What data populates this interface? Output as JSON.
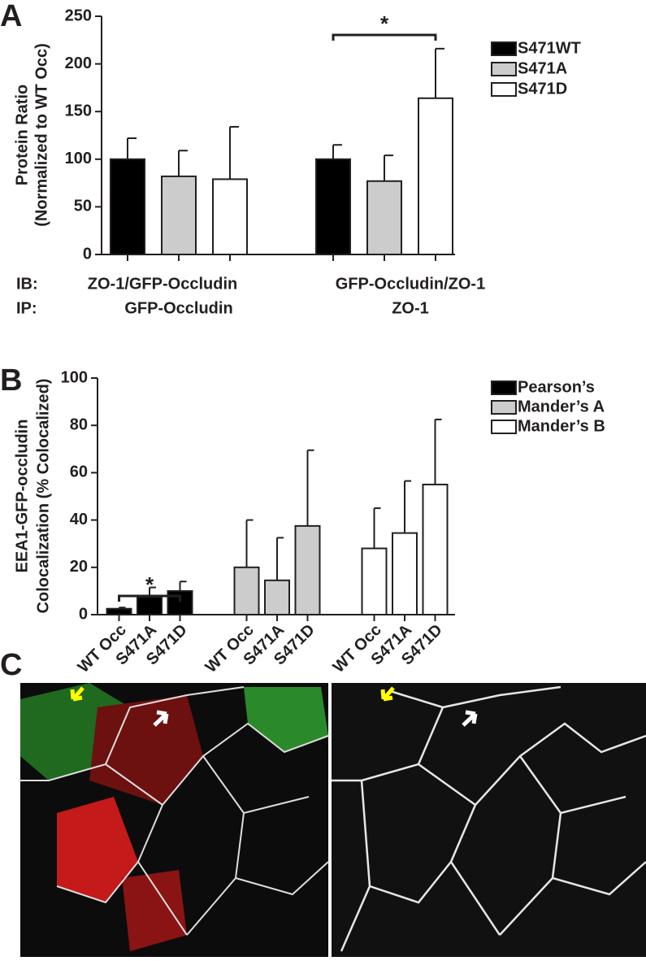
{
  "chart_data": [
    {
      "type": "bar",
      "panel": "A",
      "ylabel": [
        "Protein Ratio",
        "(Normalized to WT Occ)"
      ],
      "row_labels": [
        "IB:",
        "IP:"
      ],
      "categories": [
        "ZO-1/GFP-Occludin",
        "GFP-Occludin/ZO-1"
      ],
      "category_sublabels": [
        "GFP-Occludin",
        "ZO-1"
      ],
      "series": [
        {
          "name": "S471WT",
          "color": "#000000",
          "values": [
            100,
            100
          ],
          "errors": [
            22,
            15
          ]
        },
        {
          "name": "S471A",
          "color": "#cccccc",
          "values": [
            82,
            77
          ],
          "errors": [
            27,
            27
          ]
        },
        {
          "name": "S471D",
          "color": "#ffffff",
          "values": [
            79,
            164
          ],
          "errors": [
            55,
            52
          ]
        }
      ],
      "significance": [
        {
          "category": 1,
          "from": 0,
          "to": 2,
          "label": "*"
        }
      ],
      "ylim": [
        0,
        250
      ],
      "yticks": [
        0,
        50,
        100,
        150,
        200,
        250
      ],
      "grid": false,
      "legend": "right"
    },
    {
      "type": "bar",
      "panel": "B",
      "ylabel": [
        "EEA1-GFP-occludin",
        "Colocalization (% Colocalized)"
      ],
      "categories": [
        "WT Occ",
        "S471A",
        "S471D"
      ],
      "series": [
        {
          "name": "Pearson’s",
          "color": "#000000",
          "values": [
            2.5,
            7.5,
            10
          ],
          "errors": [
            0.5,
            4,
            4
          ]
        },
        {
          "name": "Mander’s A",
          "color": "#cccccc",
          "values": [
            20,
            14.5,
            37.5
          ],
          "errors": [
            20,
            18,
            32
          ]
        },
        {
          "name": "Mander’s B",
          "color": "#ffffff",
          "values": [
            28,
            34.5,
            55
          ],
          "errors": [
            17,
            22,
            27.5
          ]
        }
      ],
      "significance": [
        {
          "series": 0,
          "from": 0,
          "to": 2,
          "label": "*"
        }
      ],
      "ylim": [
        0,
        100
      ],
      "yticks": [
        0,
        20,
        40,
        60,
        80,
        100
      ],
      "grid": false,
      "legend": "right"
    }
  ],
  "image_panel": {
    "label": "C"
  }
}
